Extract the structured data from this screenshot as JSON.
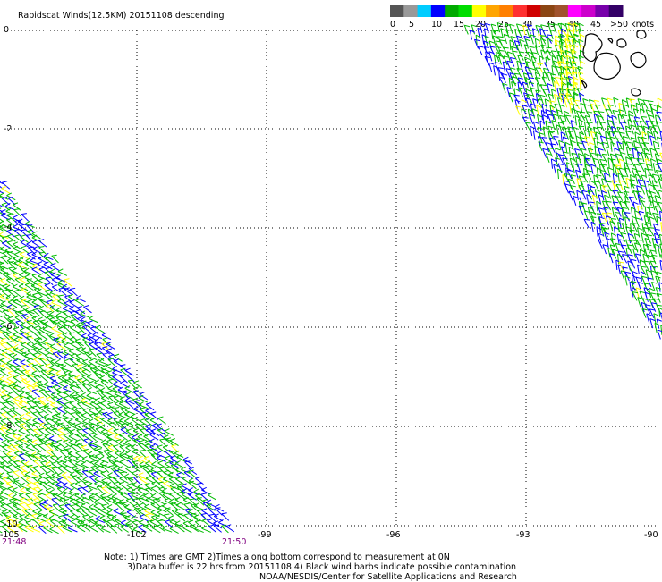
{
  "title": "Rapidscat Winds(12.5KM) 20151108 descending",
  "legend": {
    "colors": [
      "#555555",
      "#999999",
      "#00ccff",
      "#0000ff",
      "#00aa00",
      "#00dd00",
      "#ffff00",
      "#ffa500",
      "#ff7f00",
      "#ff3030",
      "#d00000",
      "#8b4513",
      "#a0522d",
      "#ff00ff",
      "#cc00cc",
      "#7700aa",
      "#330066"
    ],
    "labels": [
      "0",
      "5",
      "10",
      "15",
      "20",
      "25",
      "30",
      "35",
      "40",
      "45",
      ">50 knots"
    ]
  },
  "axes": {
    "x_ticks": [
      "-105",
      "-102",
      "-99",
      "-96",
      "-93",
      "-90"
    ],
    "y_ticks": [
      "0",
      "-2",
      "-4",
      "-6",
      "-8",
      "-10"
    ]
  },
  "times": {
    "start": "21:48",
    "end": "21:50"
  },
  "notes": [
    "Note: 1) Times are GMT 2)Times along bottom correspond to measurement at 0N",
    "3)Data buffer is 22 hrs from 20151108 4) Black wind barbs indicate possible contamination",
    "NOAA/NESDIS/Center for Satellite Applications and Research"
  ],
  "map": {
    "lon_range": [
      -105,
      -90
    ],
    "lat_range": [
      -10,
      0
    ],
    "grid_interval_deg": {
      "lon": 3,
      "lat": 2
    },
    "features": [
      "Galapagos Islands coastline"
    ],
    "barb_colors": {
      "blue": "#0000ff",
      "green": "#00bb00",
      "yellow": "#ffff00"
    }
  }
}
